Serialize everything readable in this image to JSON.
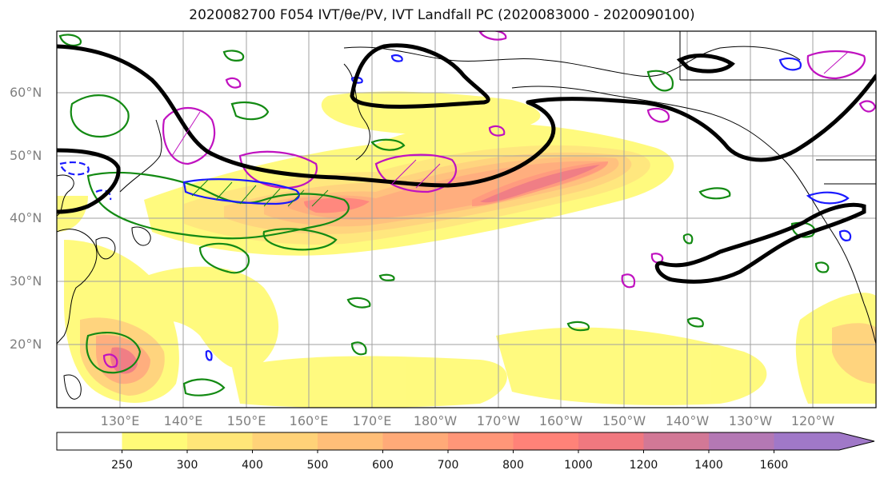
{
  "title": "2020082700 F054 IVT/θe/PV, IVT Landfall PC (2020083000 - 2020090100)",
  "lat_labels": [
    "60°N",
    "50°N",
    "40°N",
    "30°N",
    "20°N"
  ],
  "lon_labels": [
    "130°E",
    "140°E",
    "150°E",
    "160°E",
    "170°E",
    "180°W",
    "170°W",
    "160°W",
    "150°W",
    "140°W",
    "130°W",
    "120°W"
  ],
  "colorbar": {
    "labels": [
      "250",
      "300",
      "400",
      "500",
      "600",
      "700",
      "800",
      "1000",
      "1200",
      "1400",
      "1600"
    ],
    "colors": [
      "#ffffff",
      "#fffa78",
      "#ffe678",
      "#ffd278",
      "#ffbe78",
      "#ffaa78",
      "#ff9678",
      "#ff8278",
      "#f0787f",
      "#d27896",
      "#b478b4",
      "#a078c8"
    ]
  },
  "map": {
    "lat_range": [
      10,
      70
    ],
    "lon_range_east": [
      120,
      250
    ],
    "layers": [
      "IVT shading",
      "theta-e contours (green)",
      "PV contours (magenta/blue)",
      "IVT landfall principal component (black)"
    ]
  }
}
